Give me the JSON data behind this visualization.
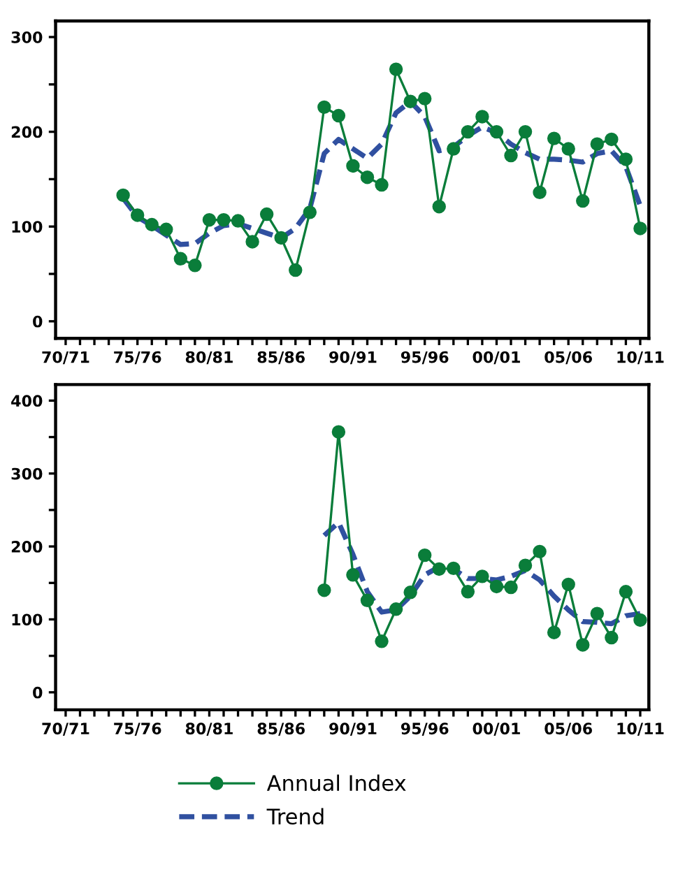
{
  "chart_data": [
    {
      "type": "line",
      "ylim": [
        -18,
        317
      ],
      "categories": [
        "70/71",
        null,
        null,
        null,
        null,
        "75/76",
        null,
        null,
        null,
        null,
        "80/81",
        null,
        null,
        null,
        null,
        "85/86",
        null,
        null,
        null,
        null,
        "90/91",
        null,
        null,
        null,
        null,
        "95/96",
        null,
        null,
        null,
        null,
        "00/01",
        null,
        null,
        null,
        null,
        "05/06",
        null,
        null,
        null,
        null,
        "10/11"
      ],
      "yticks": [
        0,
        {
          "value": 50,
          "label": null
        },
        100,
        {
          "value": 150,
          "label": null
        },
        200,
        {
          "value": 250,
          "label": null
        },
        300
      ],
      "grid": false,
      "series": [
        {
          "color": "#0a7d3a",
          "marker": "circle",
          "line_style": "solid",
          "values": [
            null,
            null,
            null,
            null,
            133,
            112,
            102,
            97,
            66,
            59,
            107,
            107,
            106,
            84,
            113,
            88,
            54,
            115,
            226,
            217,
            164,
            152,
            144,
            266,
            232,
            235,
            121,
            182,
            200,
            216,
            200,
            175,
            200,
            136,
            193,
            182,
            127,
            187,
            192,
            171,
            98
          ]
        },
        {
          "color": "#3050a0",
          "marker": "none",
          "line_style": "dashed",
          "values": [
            null,
            null,
            null,
            null,
            130,
            110,
            101,
            91,
            81,
            82,
            93,
            101,
            103,
            98,
            93,
            88,
            98,
            119,
            177,
            192,
            182,
            172,
            187,
            220,
            232,
            216,
            180,
            184,
            196,
            205,
            199,
            187,
            178,
            171,
            171,
            170,
            168,
            177,
            180,
            163,
            122
          ]
        }
      ]
    },
    {
      "type": "line",
      "ylim": [
        -24,
        422
      ],
      "categories": [
        "70/71",
        null,
        null,
        null,
        null,
        "75/76",
        null,
        null,
        null,
        null,
        "80/81",
        null,
        null,
        null,
        null,
        "85/86",
        null,
        null,
        null,
        null,
        "90/91",
        null,
        null,
        null,
        null,
        "95/96",
        null,
        null,
        null,
        null,
        "00/01",
        null,
        null,
        null,
        null,
        "05/06",
        null,
        null,
        null,
        null,
        "10/11"
      ],
      "yticks": [
        0,
        {
          "value": 50,
          "label": null
        },
        100,
        {
          "value": 150,
          "label": null
        },
        200,
        {
          "value": 250,
          "label": null
        },
        300,
        {
          "value": 350,
          "label": null
        },
        400
      ],
      "grid": false,
      "legend": "bottom",
      "series": [
        {
          "name": "Annual Index",
          "color": "#0a7d3a",
          "marker": "circle",
          "line_style": "solid",
          "values": [
            null,
            null,
            null,
            null,
            null,
            null,
            null,
            null,
            null,
            null,
            null,
            null,
            null,
            null,
            null,
            null,
            null,
            null,
            140,
            357,
            161,
            126,
            70,
            114,
            137,
            188,
            169,
            170,
            138,
            159,
            145,
            144,
            174,
            193,
            82,
            148,
            65,
            108,
            75,
            138,
            99
          ]
        },
        {
          "name": "Trend",
          "color": "#3050a0",
          "marker": "none",
          "line_style": "dashed",
          "values": [
            null,
            null,
            null,
            null,
            null,
            null,
            null,
            null,
            null,
            null,
            null,
            null,
            null,
            null,
            null,
            null,
            null,
            null,
            215,
            233,
            189,
            138,
            110,
            113,
            132,
            161,
            172,
            169,
            156,
            156,
            154,
            159,
            167,
            154,
            132,
            113,
            97,
            96,
            94,
            105,
            108
          ]
        }
      ]
    }
  ]
}
